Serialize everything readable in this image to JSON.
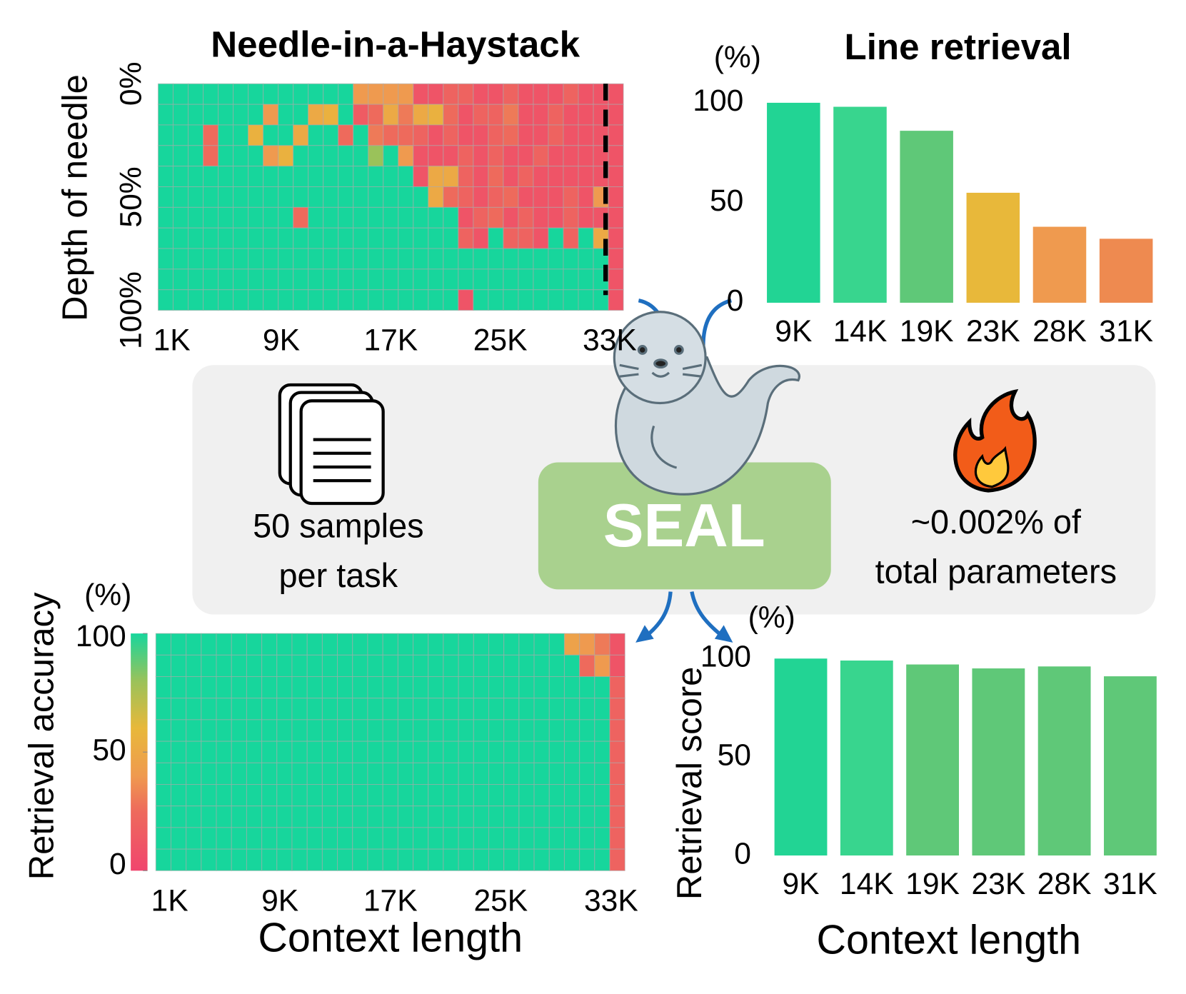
{
  "chart_data": [
    {
      "type": "heatmap",
      "title": "Needle-in-a-Haystack",
      "ylabel": "Depth of needle",
      "xlim": [
        0,
        34
      ],
      "xticks": [
        {
          "value": 1,
          "label": "1K"
        },
        {
          "value": 9,
          "label": "9K"
        },
        {
          "value": 17,
          "label": "17K"
        },
        {
          "value": 25,
          "label": "25K"
        },
        {
          "value": 33,
          "label": "33K"
        }
      ],
      "ylim": [
        0,
        100
      ],
      "yticks": [
        {
          "value": 0,
          "label": "0%"
        },
        {
          "value": 50,
          "label": "50%"
        },
        {
          "value": 100,
          "label": "100%"
        }
      ],
      "y_direction": "down",
      "threshold_x": 32.7,
      "colorscale": [
        [
          0,
          "#f0456e"
        ],
        [
          25,
          "#ee6a5c"
        ],
        [
          40,
          "#ef9a4f"
        ],
        [
          60,
          "#e8b83a"
        ],
        [
          80,
          "#9ac25a"
        ],
        [
          100,
          "#17d69c"
        ]
      ],
      "values": [
        [
          100,
          100,
          100,
          100,
          100,
          100,
          100,
          100,
          100,
          100,
          100,
          100,
          100,
          40,
          40,
          40,
          40,
          10,
          10,
          20,
          20,
          10,
          10,
          20,
          10,
          10,
          10,
          20,
          10,
          10,
          10
        ],
        [
          100,
          100,
          100,
          100,
          100,
          100,
          100,
          40,
          100,
          100,
          50,
          55,
          100,
          15,
          25,
          50,
          30,
          50,
          55,
          25,
          10,
          20,
          20,
          30,
          10,
          10,
          20,
          10,
          10,
          10,
          10
        ],
        [
          100,
          100,
          100,
          25,
          100,
          100,
          55,
          100,
          100,
          50,
          100,
          100,
          25,
          100,
          30,
          25,
          25,
          20,
          10,
          20,
          10,
          10,
          20,
          25,
          10,
          10,
          20,
          10,
          10,
          10,
          10
        ],
        [
          100,
          100,
          100,
          25,
          100,
          100,
          100,
          40,
          55,
          100,
          100,
          100,
          100,
          100,
          80,
          100,
          40,
          10,
          10,
          10,
          20,
          10,
          20,
          10,
          10,
          20,
          10,
          10,
          10,
          10,
          10
        ],
        [
          100,
          100,
          100,
          100,
          100,
          100,
          100,
          100,
          100,
          100,
          100,
          100,
          100,
          100,
          100,
          100,
          100,
          10,
          50,
          50,
          20,
          10,
          25,
          10,
          20,
          10,
          10,
          10,
          10,
          10,
          10
        ],
        [
          100,
          100,
          100,
          100,
          100,
          100,
          100,
          100,
          100,
          100,
          100,
          100,
          100,
          100,
          100,
          100,
          100,
          100,
          50,
          25,
          20,
          10,
          20,
          25,
          10,
          10,
          10,
          20,
          10,
          40,
          10
        ],
        [
          100,
          100,
          100,
          100,
          100,
          100,
          100,
          100,
          100,
          25,
          100,
          100,
          100,
          100,
          100,
          100,
          100,
          100,
          100,
          100,
          10,
          20,
          25,
          10,
          20,
          10,
          10,
          20,
          10,
          10,
          10
        ],
        [
          100,
          100,
          100,
          100,
          100,
          100,
          100,
          100,
          100,
          100,
          100,
          100,
          100,
          100,
          100,
          100,
          100,
          100,
          100,
          100,
          20,
          10,
          100,
          20,
          20,
          10,
          100,
          20,
          100,
          50,
          10
        ],
        [
          100,
          100,
          100,
          100,
          100,
          100,
          100,
          100,
          100,
          100,
          100,
          100,
          100,
          100,
          100,
          100,
          100,
          100,
          100,
          100,
          100,
          100,
          100,
          100,
          100,
          100,
          100,
          100,
          100,
          100,
          10
        ],
        [
          100,
          100,
          100,
          100,
          100,
          100,
          100,
          100,
          100,
          100,
          100,
          100,
          100,
          100,
          100,
          100,
          100,
          100,
          100,
          100,
          100,
          100,
          100,
          100,
          100,
          100,
          100,
          100,
          100,
          100,
          10
        ],
        [
          100,
          100,
          100,
          100,
          100,
          100,
          100,
          100,
          100,
          100,
          100,
          100,
          100,
          100,
          100,
          100,
          100,
          100,
          100,
          100,
          10,
          100,
          100,
          100,
          100,
          100,
          100,
          100,
          100,
          100,
          10
        ]
      ]
    },
    {
      "type": "bar",
      "title": "Line retrieval",
      "ylabel": "(%)",
      "categories": [
        "9K",
        "14K",
        "19K",
        "23K",
        "28K",
        "31K"
      ],
      "values": [
        100,
        98,
        86,
        55,
        38,
        32
      ],
      "colors": [
        "#22d494",
        "#38d58e",
        "#5fc878",
        "#e8b83a",
        "#ef9a4f",
        "#ee8a50"
      ],
      "ylim": [
        0,
        100
      ],
      "yticks": [
        0,
        50,
        100
      ]
    },
    {
      "type": "heatmap",
      "ylabel": "Retrieval accuracy",
      "xlabel": "Context length",
      "colorbar_label": "(%)",
      "xlim": [
        0,
        34
      ],
      "xticks": [
        {
          "value": 1,
          "label": "1K"
        },
        {
          "value": 9,
          "label": "9K"
        },
        {
          "value": 17,
          "label": "17K"
        },
        {
          "value": 25,
          "label": "25K"
        },
        {
          "value": 33,
          "label": "33K"
        }
      ],
      "colorbar_ticks": [
        0,
        50,
        100
      ],
      "colorbar_lim": [
        0,
        100
      ],
      "colorscale": [
        [
          0,
          "#f0456e"
        ],
        [
          25,
          "#ee6a5c"
        ],
        [
          40,
          "#ef9a4f"
        ],
        [
          60,
          "#e8b83a"
        ],
        [
          80,
          "#9ac25a"
        ],
        [
          100,
          "#17d69c"
        ]
      ],
      "values": [
        [
          100,
          100,
          100,
          100,
          100,
          100,
          100,
          100,
          100,
          100,
          100,
          100,
          100,
          100,
          100,
          100,
          100,
          100,
          100,
          100,
          100,
          100,
          100,
          100,
          100,
          100,
          100,
          45,
          40,
          30,
          10
        ],
        [
          100,
          100,
          100,
          100,
          100,
          100,
          100,
          100,
          100,
          100,
          100,
          100,
          100,
          100,
          100,
          100,
          100,
          100,
          100,
          100,
          100,
          100,
          100,
          100,
          100,
          100,
          100,
          100,
          25,
          40,
          10
        ],
        [
          100,
          100,
          100,
          100,
          100,
          100,
          100,
          100,
          100,
          100,
          100,
          100,
          100,
          100,
          100,
          100,
          100,
          100,
          100,
          100,
          100,
          100,
          100,
          100,
          100,
          100,
          100,
          100,
          100,
          100,
          20
        ],
        [
          100,
          100,
          100,
          100,
          100,
          100,
          100,
          100,
          100,
          100,
          100,
          100,
          100,
          100,
          100,
          100,
          100,
          100,
          100,
          100,
          100,
          100,
          100,
          100,
          100,
          100,
          100,
          100,
          100,
          100,
          20
        ],
        [
          100,
          100,
          100,
          100,
          100,
          100,
          100,
          100,
          100,
          100,
          100,
          100,
          100,
          100,
          100,
          100,
          100,
          100,
          100,
          100,
          100,
          100,
          100,
          100,
          100,
          100,
          100,
          100,
          100,
          100,
          20
        ],
        [
          100,
          100,
          100,
          100,
          100,
          100,
          100,
          100,
          100,
          100,
          100,
          100,
          100,
          100,
          100,
          100,
          100,
          100,
          100,
          100,
          100,
          100,
          100,
          100,
          100,
          100,
          100,
          100,
          100,
          100,
          20
        ],
        [
          100,
          100,
          100,
          100,
          100,
          100,
          100,
          100,
          100,
          100,
          100,
          100,
          100,
          100,
          100,
          100,
          100,
          100,
          100,
          100,
          100,
          100,
          100,
          100,
          100,
          100,
          100,
          100,
          100,
          100,
          20
        ],
        [
          100,
          100,
          100,
          100,
          100,
          100,
          100,
          100,
          100,
          100,
          100,
          100,
          100,
          100,
          100,
          100,
          100,
          100,
          100,
          100,
          100,
          100,
          100,
          100,
          100,
          100,
          100,
          100,
          100,
          100,
          20
        ],
        [
          100,
          100,
          100,
          100,
          100,
          100,
          100,
          100,
          100,
          100,
          100,
          100,
          100,
          100,
          100,
          100,
          100,
          100,
          100,
          100,
          100,
          100,
          100,
          100,
          100,
          100,
          100,
          100,
          100,
          100,
          20
        ],
        [
          100,
          100,
          100,
          100,
          100,
          100,
          100,
          100,
          100,
          100,
          100,
          100,
          100,
          100,
          100,
          100,
          100,
          100,
          100,
          100,
          100,
          100,
          100,
          100,
          100,
          100,
          100,
          100,
          100,
          100,
          20
        ],
        [
          100,
          100,
          100,
          100,
          100,
          100,
          100,
          100,
          100,
          100,
          100,
          100,
          100,
          100,
          100,
          100,
          100,
          100,
          100,
          100,
          100,
          100,
          100,
          100,
          100,
          100,
          100,
          100,
          100,
          100,
          20
        ]
      ]
    },
    {
      "type": "bar",
      "ylabel": "Retrieval score",
      "unit_label": "(%)",
      "xlabel": "Context length",
      "categories": [
        "9K",
        "14K",
        "19K",
        "23K",
        "28K",
        "31K"
      ],
      "values": [
        100,
        99,
        97,
        95,
        96,
        91
      ],
      "colors": [
        "#22d494",
        "#38d58e",
        "#5fc878",
        "#5fc878",
        "#5fc878",
        "#5fc878"
      ],
      "ylim": [
        0,
        100
      ],
      "yticks": [
        0,
        50,
        100
      ]
    }
  ],
  "center": {
    "label": "SEAL",
    "left_text": [
      "50 samples",
      "per task"
    ],
    "right_text": [
      "~0.002% of",
      "total parameters"
    ]
  }
}
